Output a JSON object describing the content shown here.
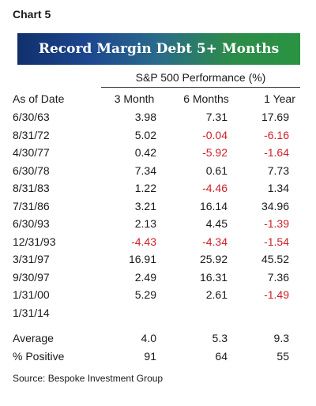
{
  "chart_label": "Chart 5",
  "title": "Record Margin Debt 5+ Months",
  "group_header": "S&P 500 Performance (%)",
  "columns": [
    "As of Date",
    "3 Month",
    "6 Months",
    "1 Year"
  ],
  "colors": {
    "negative": "#d01f25",
    "banner_left": "#10306b",
    "banner_right": "#2a9442"
  },
  "chart_data": {
    "type": "table",
    "title": "Record Margin Debt 5+ Months",
    "columns": [
      "As of Date",
      "3 Month",
      "6 Months",
      "1 Year"
    ],
    "rows": [
      {
        "date": "6/30/63",
        "m3": "3.98",
        "m6": "7.31",
        "y1": "17.69"
      },
      {
        "date": "8/31/72",
        "m3": "5.02",
        "m6": "-0.04",
        "y1": "-6.16"
      },
      {
        "date": "4/30/77",
        "m3": "0.42",
        "m6": "-5.92",
        "y1": "-1.64"
      },
      {
        "date": "6/30/78",
        "m3": "7.34",
        "m6": "0.61",
        "y1": "7.73"
      },
      {
        "date": "8/31/83",
        "m3": "1.22",
        "m6": "-4.46",
        "y1": "1.34"
      },
      {
        "date": "7/31/86",
        "m3": "3.21",
        "m6": "16.14",
        "y1": "34.96"
      },
      {
        "date": "6/30/93",
        "m3": "2.13",
        "m6": "4.45",
        "y1": "-1.39"
      },
      {
        "date": "12/31/93",
        "m3": "-4.43",
        "m6": "-4.34",
        "y1": "-1.54"
      },
      {
        "date": "3/31/97",
        "m3": "16.91",
        "m6": "25.92",
        "y1": "45.52"
      },
      {
        "date": "9/30/97",
        "m3": "2.49",
        "m6": "16.31",
        "y1": "7.36"
      },
      {
        "date": "1/31/00",
        "m3": "5.29",
        "m6": "2.61",
        "y1": "-1.49"
      },
      {
        "date": "1/31/14",
        "m3": "",
        "m6": "",
        "y1": ""
      }
    ],
    "summary": [
      {
        "label": "Average",
        "m3": "4.0",
        "m6": "5.3",
        "y1": "9.3"
      },
      {
        "label": "% Positive",
        "m3": "91",
        "m6": "64",
        "y1": "55"
      }
    ]
  },
  "source": "Source: Bespoke Investment Group"
}
